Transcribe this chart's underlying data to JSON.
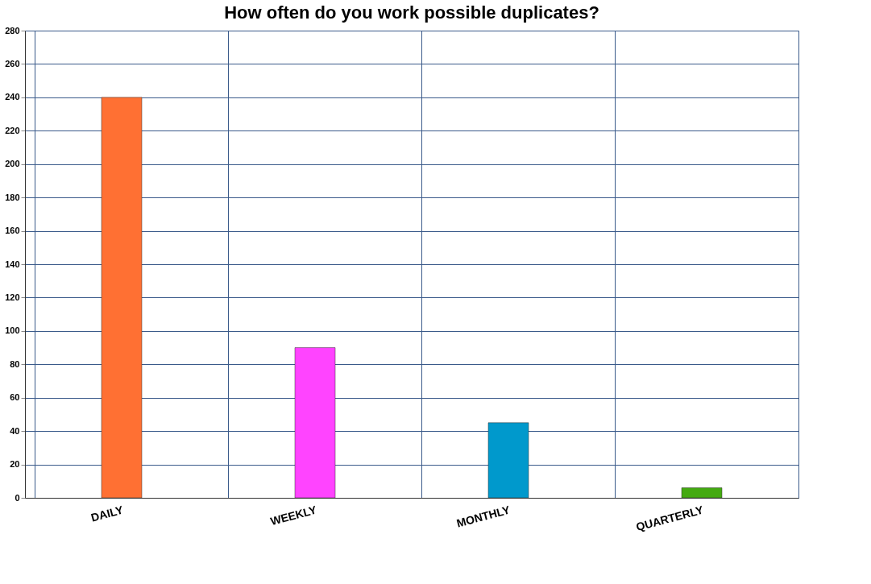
{
  "chart_data": {
    "type": "bar",
    "title": "How often do you work possible duplicates?",
    "categories": [
      "DAILY",
      "WEEKLY",
      "MONTHLY",
      "QUARTERLY"
    ],
    "values": [
      240,
      90,
      45,
      6
    ],
    "colors": [
      "#ff7033",
      "#ff44ff",
      "#0099cc",
      "#44aa11"
    ],
    "ylim": [
      0,
      280
    ],
    "yticks": [
      0,
      20,
      40,
      60,
      80,
      100,
      120,
      140,
      160,
      180,
      200,
      220,
      240,
      260,
      280
    ],
    "grid": true,
    "legend": false
  }
}
